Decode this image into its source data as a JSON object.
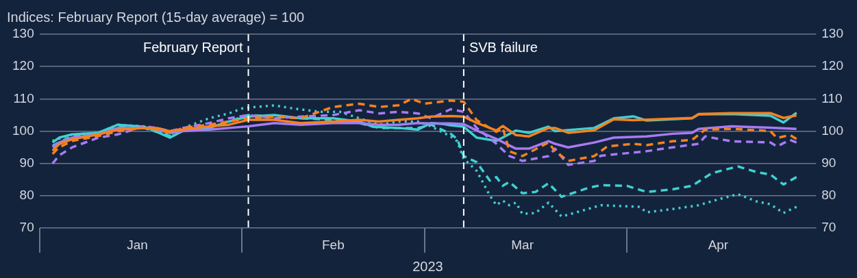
{
  "chart_data": {
    "type": "line",
    "title": "Indices: February Report (15-day average) = 100",
    "xlabel": "2023",
    "xlim": [
      "2023-01-01",
      "2023-04-30"
    ],
    "xticks": [
      {
        "value": "2023-01-16",
        "label": "Jan"
      },
      {
        "value": "2023-02-15",
        "label": "Feb"
      },
      {
        "value": "2023-03-16",
        "label": "Mar"
      },
      {
        "value": "2023-04-15",
        "label": "Apr"
      }
    ],
    "ylim": [
      70,
      130
    ],
    "yticks": [
      70,
      80,
      90,
      100,
      110,
      120,
      130
    ],
    "y2lim": [
      70,
      130
    ],
    "y2ticks": [
      70,
      80,
      90,
      100,
      110,
      120,
      130
    ],
    "grid": "y",
    "legend": false,
    "marker": "none",
    "ref_lines": [
      {
        "axis": "x",
        "value": "2023-02-02",
        "label": "February Report",
        "color": "#ffffff",
        "line_style": "dashed"
      },
      {
        "axis": "x",
        "value": "2023-03-07",
        "label": "SVB failure",
        "color": "#ffffff",
        "line_style": "dashed"
      }
    ],
    "series": [
      {
        "color": "#f58220",
        "line_style": "solid",
        "x": [
          "2023-01-03",
          "2023-01-04",
          "2023-01-06",
          "2023-01-10",
          "2023-01-13",
          "2023-01-17",
          "2023-01-19",
          "2023-01-21",
          "2023-01-23",
          "2023-01-27",
          "2023-01-30",
          "2023-02-02",
          "2023-02-06",
          "2023-02-10",
          "2023-02-15",
          "2023-02-19",
          "2023-02-22",
          "2023-02-25",
          "2023-02-28",
          "2023-03-02",
          "2023-03-05",
          "2023-03-07",
          "2023-03-09",
          "2023-03-12",
          "2023-03-13",
          "2023-03-15",
          "2023-03-17",
          "2023-03-20",
          "2023-03-21",
          "2023-03-23",
          "2023-03-27",
          "2023-03-30",
          "2023-04-02",
          "2023-04-11",
          "2023-04-12",
          "2023-04-17",
          "2023-04-23",
          "2023-04-25",
          "2023-04-27"
        ],
        "values": [
          94,
          96,
          97.5,
          99,
          100.5,
          101,
          101,
          100,
          100.5,
          101.5,
          102,
          103.5,
          103.5,
          102.5,
          103,
          103.5,
          103,
          103.5,
          104,
          104.5,
          104.7,
          104.5,
          102.6,
          100.2,
          101.6,
          98.8,
          98.4,
          101,
          101,
          99.5,
          100.3,
          103.7,
          103.4,
          104.1,
          105.3,
          105.6,
          105.6,
          104.1,
          104.9
        ]
      },
      {
        "color": "#f58220",
        "line_style": "dashed",
        "x": [
          "2023-01-03",
          "2023-01-04",
          "2023-01-06",
          "2023-01-10",
          "2023-01-13",
          "2023-01-17",
          "2023-01-19",
          "2023-01-21",
          "2023-01-23",
          "2023-01-27",
          "2023-01-30",
          "2023-02-02",
          "2023-02-06",
          "2023-02-10",
          "2023-02-15",
          "2023-02-19",
          "2023-02-22",
          "2023-02-25",
          "2023-02-27",
          "2023-03-01",
          "2023-03-05",
          "2023-03-07",
          "2023-03-09",
          "2023-03-12",
          "2023-03-13",
          "2023-03-14",
          "2023-03-16",
          "2023-03-20",
          "2023-03-21",
          "2023-03-23",
          "2023-03-27",
          "2023-03-29",
          "2023-04-02",
          "2023-04-04",
          "2023-04-08",
          "2023-04-11",
          "2023-04-13",
          "2023-04-17",
          "2023-04-21",
          "2023-04-23",
          "2023-04-24",
          "2023-04-26",
          "2023-04-27"
        ],
        "values": [
          93,
          95,
          97,
          98.5,
          100,
          101,
          100.5,
          99.5,
          101,
          102,
          103,
          104,
          104.5,
          104,
          107.5,
          108.5,
          107.5,
          108,
          110,
          108.5,
          109.5,
          109.1,
          103.4,
          99.8,
          101,
          93.8,
          92.3,
          96.5,
          93.8,
          90.8,
          92.3,
          95.3,
          96.1,
          95.7,
          96.9,
          97.3,
          100.5,
          100.7,
          100.3,
          100,
          97.9,
          98.8,
          97.6
        ]
      },
      {
        "color": "#a77bf3",
        "line_style": "solid",
        "x": [
          "2023-01-03",
          "2023-01-04",
          "2023-01-06",
          "2023-01-10",
          "2023-01-13",
          "2023-01-17",
          "2023-01-19",
          "2023-01-21",
          "2023-01-23",
          "2023-01-27",
          "2023-01-30",
          "2023-02-02",
          "2023-02-06",
          "2023-02-10",
          "2023-02-15",
          "2023-02-19",
          "2023-02-22",
          "2023-02-25",
          "2023-02-28",
          "2023-03-02",
          "2023-03-05",
          "2023-03-07",
          "2023-03-09",
          "2023-03-12",
          "2023-03-15",
          "2023-03-17",
          "2023-03-20",
          "2023-03-21",
          "2023-03-23",
          "2023-03-27",
          "2023-03-30",
          "2023-04-04",
          "2023-04-08",
          "2023-04-11",
          "2023-04-12",
          "2023-04-17",
          "2023-04-23",
          "2023-04-27"
        ],
        "values": [
          95,
          96.5,
          98,
          99,
          101,
          101,
          100.5,
          99.5,
          100,
          100.5,
          101,
          101.5,
          102.5,
          102,
          102.5,
          102.5,
          102,
          102,
          102.5,
          102.4,
          102.4,
          102.2,
          100.2,
          97.6,
          94.6,
          94.6,
          96.9,
          96.1,
          95,
          96.5,
          98,
          98.4,
          99.2,
          99.5,
          100.7,
          101.5,
          101.1,
          100.7
        ]
      },
      {
        "color": "#a77bf3",
        "line_style": "dashed",
        "x": [
          "2023-01-03",
          "2023-01-04",
          "2023-01-06",
          "2023-01-10",
          "2023-01-13",
          "2023-01-17",
          "2023-01-19",
          "2023-01-21",
          "2023-01-23",
          "2023-01-27",
          "2023-01-30",
          "2023-02-02",
          "2023-02-06",
          "2023-02-10",
          "2023-02-15",
          "2023-02-19",
          "2023-02-22",
          "2023-02-25",
          "2023-02-28",
          "2023-03-02",
          "2023-03-05",
          "2023-03-07",
          "2023-03-09",
          "2023-03-12",
          "2023-03-14",
          "2023-03-16",
          "2023-03-20",
          "2023-03-21",
          "2023-03-23",
          "2023-03-27",
          "2023-03-28",
          "2023-04-04",
          "2023-04-08",
          "2023-04-12",
          "2023-04-13",
          "2023-04-17",
          "2023-04-23",
          "2023-04-24",
          "2023-04-26",
          "2023-04-27"
        ],
        "values": [
          90,
          92.5,
          95,
          98,
          99,
          101.5,
          101,
          100,
          101,
          102.5,
          104,
          105,
          104,
          104.5,
          105,
          106.5,
          105.5,
          106,
          105.5,
          104,
          106.8,
          106,
          101,
          96.1,
          92.3,
          90.8,
          92.3,
          94.6,
          89.6,
          90.8,
          92.4,
          93.8,
          95,
          96.1,
          98.4,
          96.9,
          96.5,
          95.3,
          97.3,
          96.5
        ]
      },
      {
        "color": "#40d0d0",
        "line_style": "solid",
        "x": [
          "2023-01-03",
          "2023-01-04",
          "2023-01-06",
          "2023-01-10",
          "2023-01-13",
          "2023-01-17",
          "2023-01-19",
          "2023-01-21",
          "2023-01-23",
          "2023-01-27",
          "2023-01-30",
          "2023-02-02",
          "2023-02-06",
          "2023-02-10",
          "2023-02-15",
          "2023-02-19",
          "2023-02-21",
          "2023-02-25",
          "2023-02-28",
          "2023-03-02",
          "2023-03-04",
          "2023-03-05",
          "2023-03-07",
          "2023-03-09",
          "2023-03-12",
          "2023-03-15",
          "2023-03-17",
          "2023-03-20",
          "2023-03-21",
          "2023-03-27",
          "2023-03-30",
          "2023-04-02",
          "2023-04-04",
          "2023-04-11",
          "2023-04-12",
          "2023-04-17",
          "2023-04-23",
          "2023-04-25",
          "2023-04-27"
        ],
        "values": [
          96.5,
          98,
          99,
          99.5,
          102,
          101.4,
          99.8,
          98,
          100.2,
          101,
          103,
          104.5,
          105,
          104,
          104,
          103,
          101.4,
          101,
          100.5,
          102.5,
          102.2,
          101.8,
          101.4,
          98,
          97,
          100.2,
          99.5,
          101.4,
          100,
          101,
          104,
          104.6,
          103.3,
          104,
          105.2,
          105.3,
          104.8,
          102.7,
          105.7
        ]
      },
      {
        "color": "#40d0d0",
        "line_style": "dashed",
        "x": [
          "2023-01-03",
          "2023-01-06",
          "2023-01-10",
          "2023-01-13",
          "2023-01-17",
          "2023-01-21",
          "2023-01-23",
          "2023-01-27",
          "2023-01-30",
          "2023-02-02",
          "2023-02-06",
          "2023-02-10",
          "2023-02-15",
          "2023-02-19",
          "2023-02-22",
          "2023-02-25",
          "2023-02-28",
          "2023-03-02",
          "2023-03-05",
          "2023-03-06",
          "2023-03-07",
          "2023-03-09",
          "2023-03-11",
          "2023-03-12",
          "2023-03-13",
          "2023-03-14",
          "2023-03-16",
          "2023-03-18",
          "2023-03-20",
          "2023-03-22",
          "2023-03-26",
          "2023-03-28",
          "2023-04-01",
          "2023-04-04",
          "2023-04-08",
          "2023-04-11",
          "2023-04-14",
          "2023-04-18",
          "2023-04-21",
          "2023-04-23",
          "2023-04-25",
          "2023-04-27"
        ],
        "values": [
          95.5,
          98.5,
          99,
          101.5,
          101,
          98.5,
          100,
          101.5,
          103,
          105,
          104.5,
          104,
          103.5,
          102.5,
          101,
          101,
          101,
          102,
          99.2,
          97.6,
          92.3,
          90.4,
          84.7,
          85.8,
          83.1,
          84.3,
          80.8,
          81.2,
          83.9,
          79.7,
          82.4,
          83.3,
          83.1,
          81.2,
          82,
          83.1,
          87,
          89.1,
          87.3,
          86.6,
          83.5,
          85.8
        ]
      },
      {
        "color": "#40d0d0",
        "line_style": "dotted",
        "x": [
          "2023-01-03",
          "2023-01-06",
          "2023-01-10",
          "2023-01-13",
          "2023-01-17",
          "2023-01-21",
          "2023-01-23",
          "2023-01-25",
          "2023-01-27",
          "2023-01-30",
          "2023-02-01",
          "2023-02-03",
          "2023-02-06",
          "2023-02-09",
          "2023-02-13",
          "2023-02-16",
          "2023-02-19",
          "2023-02-22",
          "2023-02-25",
          "2023-02-28",
          "2023-03-02",
          "2023-03-05",
          "2023-03-06",
          "2023-03-07",
          "2023-03-09",
          "2023-03-11",
          "2023-03-12",
          "2023-03-13",
          "2023-03-14",
          "2023-03-15",
          "2023-03-16",
          "2023-03-18",
          "2023-03-20",
          "2023-03-22",
          "2023-03-26",
          "2023-03-28",
          "2023-04-03",
          "2023-04-04",
          "2023-04-08",
          "2023-04-12",
          "2023-04-15",
          "2023-04-18",
          "2023-04-21",
          "2023-04-23",
          "2023-04-25",
          "2023-04-27"
        ],
        "values": [
          97,
          99,
          99.5,
          102,
          101.5,
          99,
          101,
          102.5,
          104,
          105.5,
          107,
          107.5,
          108,
          107,
          106,
          106,
          104,
          102,
          103,
          103,
          101.5,
          98.4,
          96.9,
          91.5,
          87.7,
          80.1,
          77.1,
          78.5,
          77.1,
          77.9,
          74.4,
          74.7,
          77.9,
          73.6,
          75.9,
          77.1,
          76.6,
          74.9,
          75.9,
          77.1,
          78.9,
          80.5,
          78.2,
          77.4,
          74.7,
          76.6
        ]
      }
    ]
  }
}
